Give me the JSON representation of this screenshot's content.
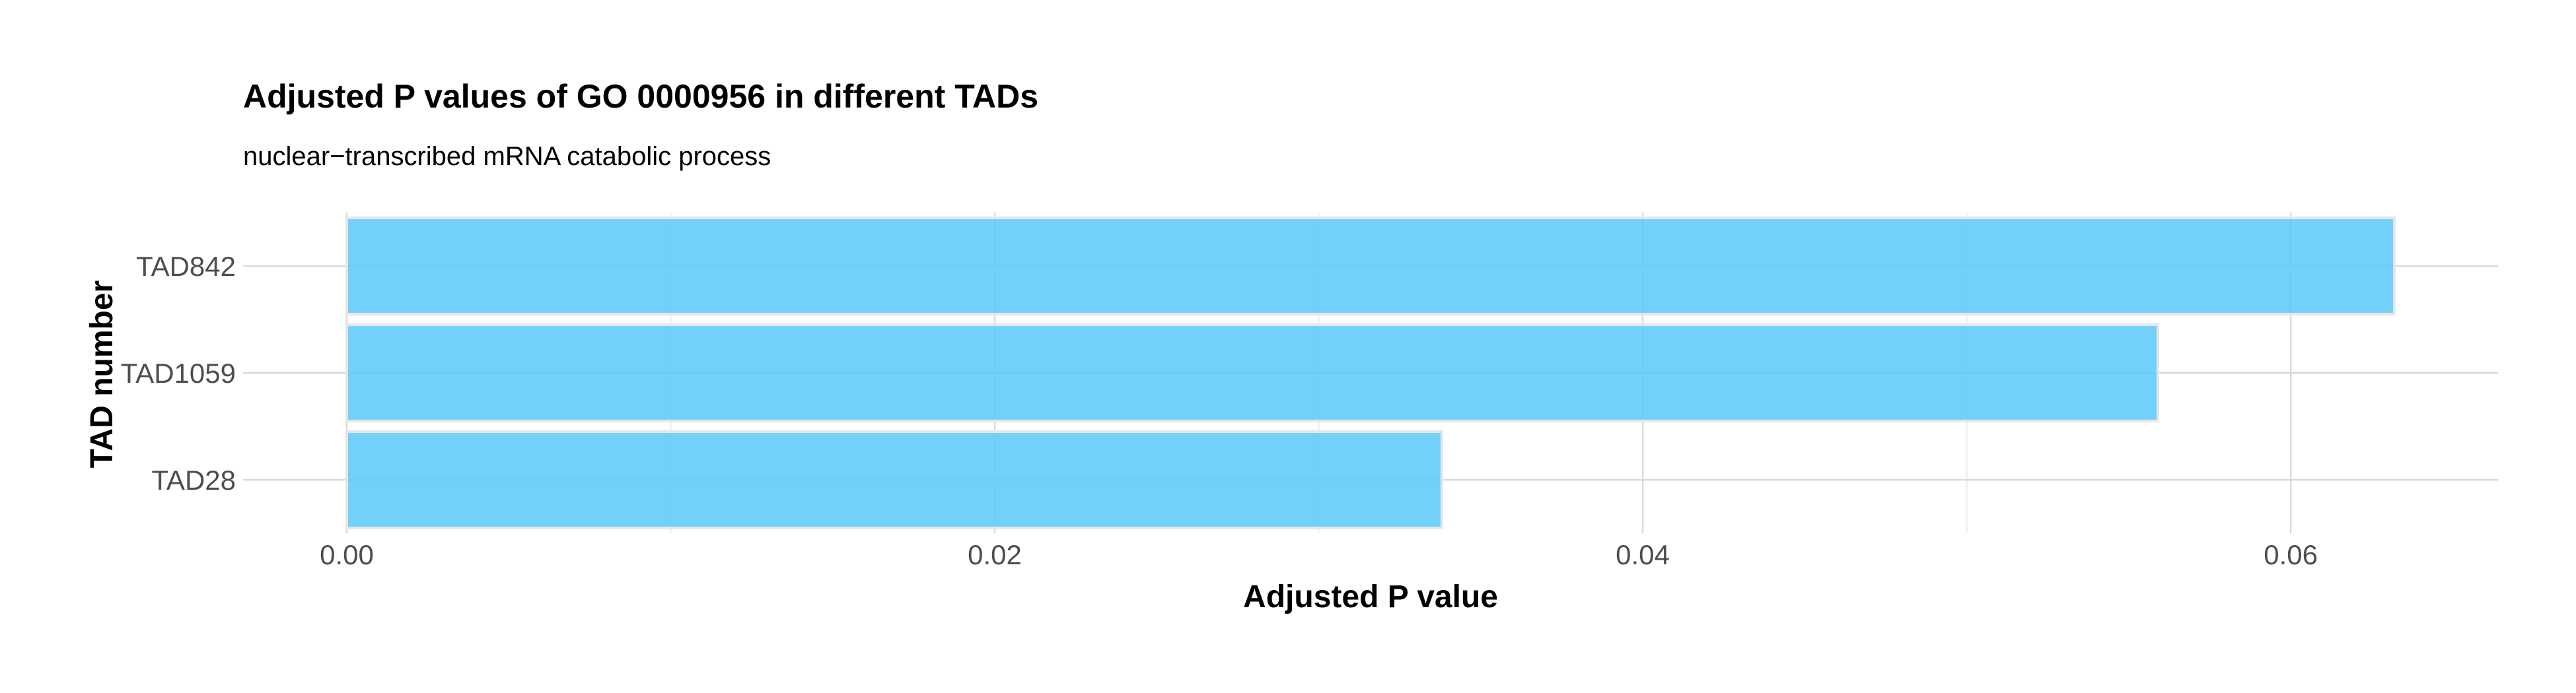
{
  "chart_data": {
    "type": "bar",
    "orientation": "horizontal",
    "title": "Adjusted P values of GO 0000956 in different TADs",
    "subtitle": "nuclear−transcribed mRNA catabolic process",
    "xlabel": "Adjusted P value",
    "ylabel": "TAD number",
    "categories": [
      "TAD842",
      "TAD1059",
      "TAD28"
    ],
    "values": [
      0.0632,
      0.0559,
      0.0338
    ],
    "xlim": [
      -0.0032,
      0.0664
    ],
    "x_ticks": [
      0.0,
      0.02,
      0.04,
      0.06
    ],
    "x_tick_labels": [
      "0.00",
      "0.02",
      "0.04",
      "0.06"
    ],
    "grid": true,
    "legend": "none",
    "colors": {
      "bar_fill": "#5bc8fa",
      "bar_stroke": "#e6e6e6",
      "grid_major": "#d9d9d9",
      "grid_minor": "#ebebeb",
      "tick_text": "#4d4d4d",
      "title_text": "#000000"
    }
  }
}
